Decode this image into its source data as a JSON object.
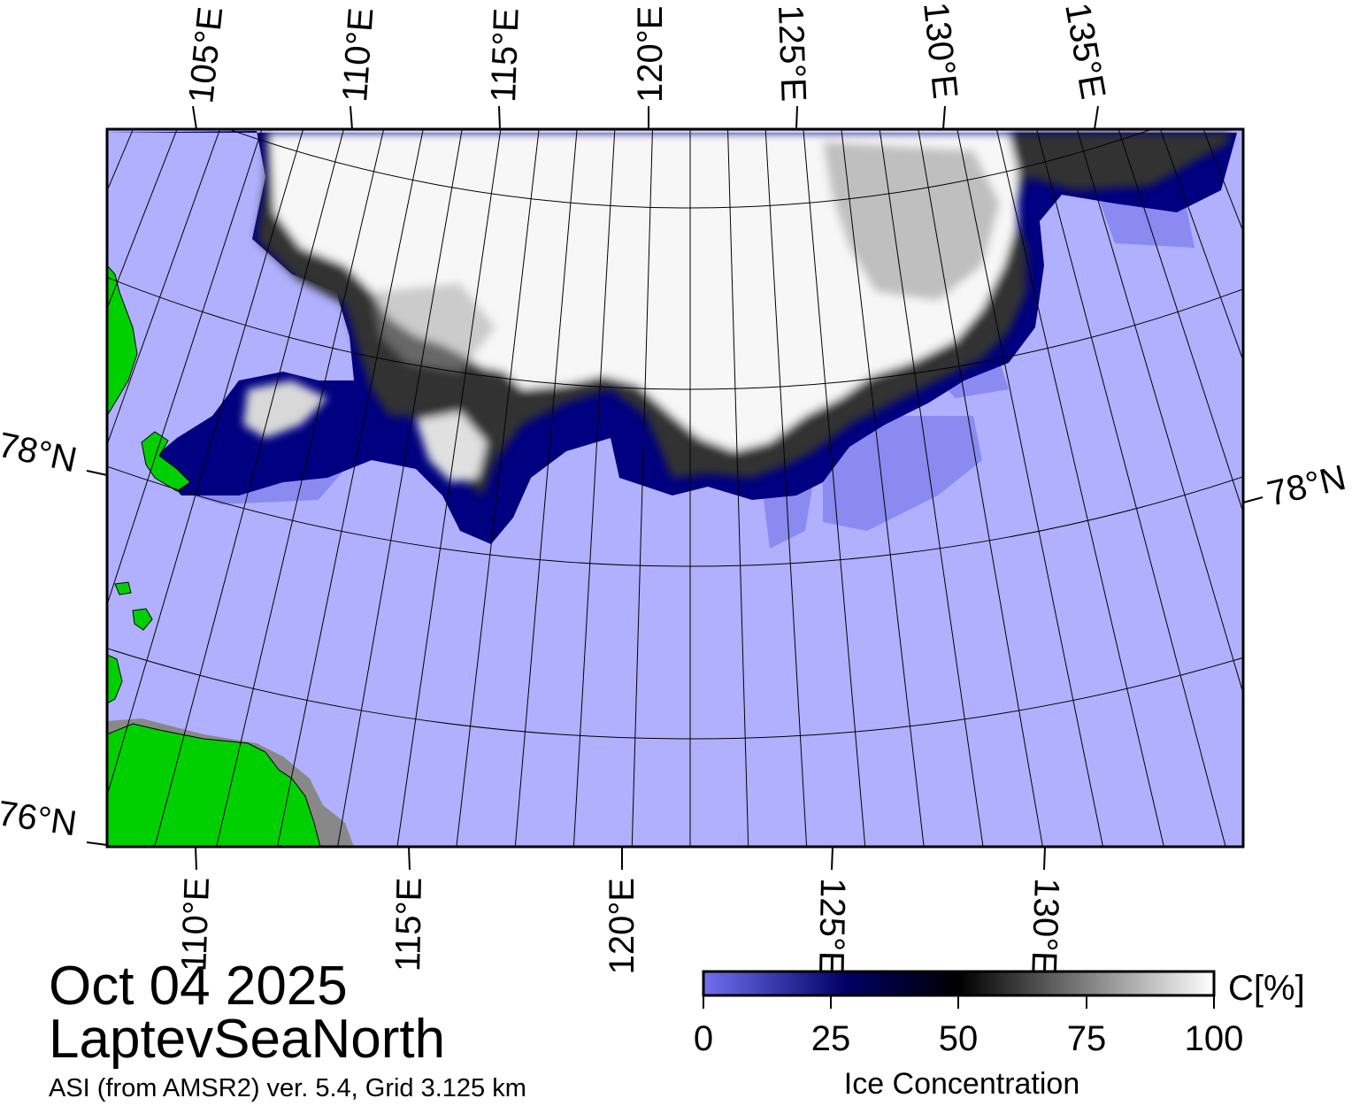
{
  "date": "Oct 04 2025",
  "region": "LaptevSeaNorth",
  "product": "ASI (from AMSR2) ver. 5.4,  Grid 3.125 km",
  "top_lon_labels": [
    "105°E",
    "110°E",
    "115°E",
    "120°E",
    "125°E",
    "130°E",
    "135°E"
  ],
  "bottom_lon_labels": [
    "110°E",
    "115°E",
    "120°E",
    "125°E",
    "130°E"
  ],
  "lat_labels": {
    "left_78": "78°N",
    "right_78": "78°N",
    "left_76": "76°N"
  },
  "colorbar": {
    "title": "Ice Concentration",
    "unit": "C[%]",
    "ticks": [
      "0",
      "25",
      "50",
      "75",
      "100"
    ],
    "colors": {
      "low": "#7070f0",
      "mid_low": "#000066",
      "mid": "#000000",
      "high": "#ffffff"
    }
  },
  "colors": {
    "open_water": "#b0b0ff",
    "land": "#00d000",
    "coast_mask": "#888888",
    "ice_edge": "#000080"
  }
}
